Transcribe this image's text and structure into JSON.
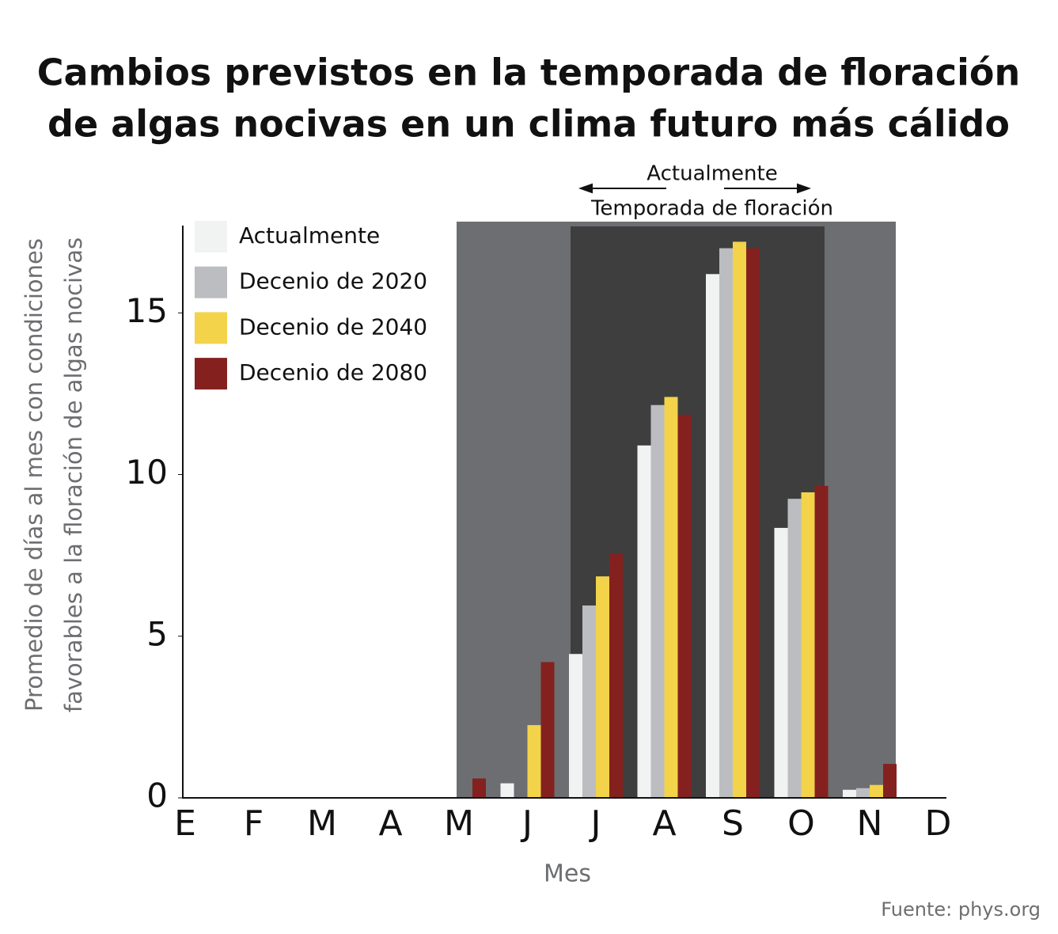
{
  "chart_data": {
    "type": "bar",
    "title": [
      "Cambios previstos en la temporada de floración",
      "de algas nocivas en un clima futuro más cálido"
    ],
    "y_label": [
      "Promedio de días al mes con condiciones",
      "favorables a la floración de algas nocivas"
    ],
    "x_label": "Mes",
    "source": "Fuente: phys.org",
    "annotations": [
      "Actualmente",
      "Temporada de floración"
    ],
    "categories": [
      "E",
      "F",
      "M",
      "A",
      "M",
      "J",
      "J",
      "A",
      "S",
      "O",
      "N",
      "D"
    ],
    "series": [
      {
        "name": "Actualmente",
        "color": "#f1f2f2",
        "values": [
          0,
          0,
          0,
          0,
          0,
          0.45,
          4.45,
          10.9,
          16.2,
          8.35,
          0.25,
          0
        ]
      },
      {
        "name": "Decenio de 2020",
        "color": "#bcbdc0",
        "values": [
          0,
          0,
          0,
          0,
          0,
          0,
          5.95,
          12.15,
          17.0,
          9.25,
          0.3,
          0
        ]
      },
      {
        "name": "Decenio de 2040",
        "color": "#f2d34a",
        "values": [
          0,
          0,
          0,
          0,
          0,
          2.25,
          6.85,
          12.4,
          17.2,
          9.45,
          0.4,
          0
        ]
      },
      {
        "name": "Decenio de 2080",
        "color": "#84211f",
        "values": [
          0,
          0,
          0,
          0,
          0.6,
          4.2,
          7.55,
          11.85,
          17.0,
          9.65,
          1.05,
          0
        ]
      }
    ],
    "ylim": [
      0,
      17.7
    ],
    "yticks": [
      0,
      5,
      10,
      15
    ],
    "grid": false,
    "legend": "upper left"
  }
}
